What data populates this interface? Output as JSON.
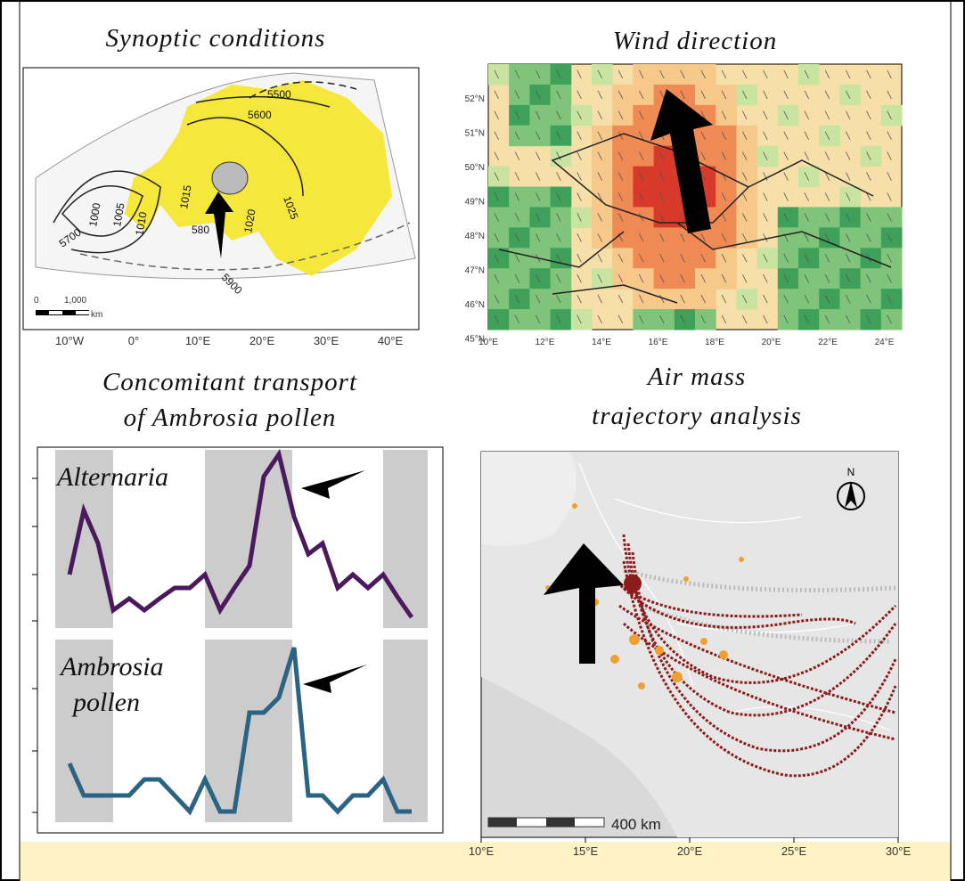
{
  "panels": {
    "synoptic": {
      "title": "Synoptic conditions",
      "contours": [
        "5500",
        "5600",
        "1025",
        "1015",
        "1020",
        "1000",
        "1005",
        "1010",
        "5700",
        "580",
        "5900"
      ],
      "scale": {
        "start": "0",
        "end": "1,000",
        "unit": "km"
      },
      "lon_labels": [
        "10°W",
        "0°",
        "10°E",
        "20°E",
        "30°E",
        "40°E"
      ]
    },
    "wind": {
      "title": "Wind direction",
      "lat_labels": [
        "52°N",
        "51°N",
        "50°N",
        "49°N",
        "48°N",
        "47°N",
        "46°N",
        "45°N"
      ],
      "lon_labels": [
        "10°E",
        "12°E",
        "14°E",
        "16°E",
        "18°E",
        "20°E",
        "22°E",
        "24°E"
      ]
    },
    "transport": {
      "title_lines": [
        "Concomitant transport",
        "of Ambrosia pollen"
      ],
      "series": [
        "Alternaria",
        "Ambrosia pollen"
      ]
    },
    "trajectory": {
      "title_lines": [
        "Air mass",
        "trajectory analysis"
      ],
      "north": "N",
      "scale": "400 km",
      "lon_labels": [
        "10°E",
        "15°E",
        "20°E",
        "25°E",
        "30°E"
      ]
    }
  }
}
